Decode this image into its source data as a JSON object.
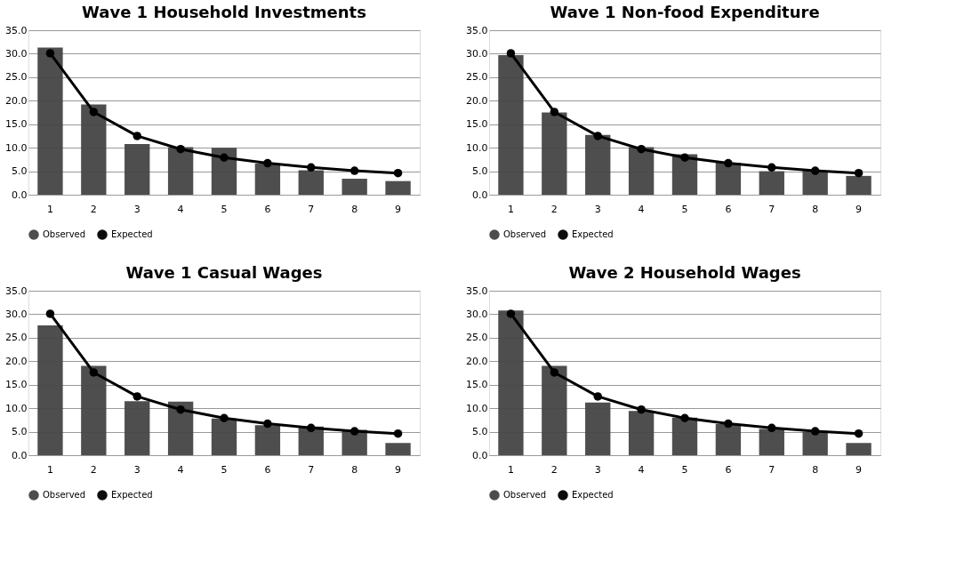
{
  "chart_data": [
    {
      "type": "bar",
      "title": "Wave 1 Household Investments",
      "categories": [
        "1",
        "2",
        "3",
        "4",
        "5",
        "6",
        "7",
        "8",
        "9"
      ],
      "ylim": [
        0,
        35
      ],
      "yticks": [
        {
          "value": 0,
          "label": "0.0"
        },
        {
          "value": 5,
          "label": "5.0"
        },
        {
          "value": 10,
          "label": "10.0"
        },
        {
          "value": 15,
          "label": "15.0"
        },
        {
          "value": 20,
          "label": "20.0"
        },
        {
          "value": 25,
          "label": "25.0"
        },
        {
          "value": 30,
          "label": "30.0"
        },
        {
          "value": 35,
          "label": "35.0"
        }
      ],
      "grid": "y",
      "legend": "bottom",
      "marker": "circle",
      "series": [
        {
          "name": "Observed",
          "color": "#444444",
          "values": [
            31.3,
            19.2,
            10.8,
            10.1,
            10.0,
            6.6,
            5.2,
            3.4,
            2.9
          ]
        },
        {
          "name": "Expected",
          "type": "line",
          "color": "#000000",
          "values": [
            30.1,
            17.6,
            12.5,
            9.7,
            7.9,
            6.7,
            5.8,
            5.1,
            4.6
          ]
        }
      ]
    },
    {
      "type": "bar",
      "title": "Wave 1 Non-food Expenditure",
      "categories": [
        "1",
        "2",
        "3",
        "4",
        "5",
        "6",
        "7",
        "8",
        "9"
      ],
      "ylim": [
        0,
        35
      ],
      "yticks": [
        {
          "value": 0,
          "label": "0.0"
        },
        {
          "value": 5,
          "label": "5.0"
        },
        {
          "value": 10,
          "label": "10.0"
        },
        {
          "value": 15,
          "label": "15.0"
        },
        {
          "value": 20,
          "label": "20.0"
        },
        {
          "value": 25,
          "label": "25.0"
        },
        {
          "value": 30,
          "label": "30.0"
        },
        {
          "value": 35,
          "label": "35.0"
        }
      ],
      "grid": "y",
      "legend": "bottom",
      "marker": "circle",
      "series": [
        {
          "name": "Observed",
          "color": "#444444",
          "values": [
            29.7,
            17.5,
            12.7,
            10.1,
            8.6,
            6.8,
            5.0,
            5.1,
            4.0
          ]
        },
        {
          "name": "Expected",
          "type": "line",
          "color": "#000000",
          "values": [
            30.1,
            17.6,
            12.5,
            9.7,
            7.9,
            6.7,
            5.8,
            5.1,
            4.6
          ]
        }
      ]
    },
    {
      "type": "bar",
      "title": "Wave 1 Casual Wages",
      "categories": [
        "1",
        "2",
        "3",
        "4",
        "5",
        "6",
        "7",
        "8",
        "9"
      ],
      "ylim": [
        0,
        35
      ],
      "yticks": [
        {
          "value": 0,
          "label": "0.0"
        },
        {
          "value": 5,
          "label": "5.0"
        },
        {
          "value": 10,
          "label": "10.0"
        },
        {
          "value": 15,
          "label": "15.0"
        },
        {
          "value": 20,
          "label": "20.0"
        },
        {
          "value": 25,
          "label": "25.0"
        },
        {
          "value": 30,
          "label": "30.0"
        },
        {
          "value": 35,
          "label": "35.0"
        }
      ],
      "grid": "y",
      "legend": "bottom",
      "marker": "circle",
      "series": [
        {
          "name": "Observed",
          "color": "#444444",
          "values": [
            27.6,
            19.0,
            11.5,
            11.4,
            7.8,
            6.4,
            6.1,
            5.4,
            2.6
          ]
        },
        {
          "name": "Expected",
          "type": "line",
          "color": "#000000",
          "values": [
            30.1,
            17.6,
            12.5,
            9.7,
            7.9,
            6.7,
            5.8,
            5.1,
            4.6
          ]
        }
      ]
    },
    {
      "type": "bar",
      "title": "Wave 2 Household Wages",
      "categories": [
        "1",
        "2",
        "3",
        "4",
        "5",
        "6",
        "7",
        "8",
        "9"
      ],
      "ylim": [
        0,
        35
      ],
      "yticks": [
        {
          "value": 0,
          "label": "0.0"
        },
        {
          "value": 5,
          "label": "5.0"
        },
        {
          "value": 10,
          "label": "10.0"
        },
        {
          "value": 15,
          "label": "15.0"
        },
        {
          "value": 20,
          "label": "20.0"
        },
        {
          "value": 25,
          "label": "25.0"
        },
        {
          "value": 30,
          "label": "30.0"
        },
        {
          "value": 35,
          "label": "35.0"
        }
      ],
      "grid": "y",
      "legend": "bottom",
      "marker": "circle",
      "series": [
        {
          "name": "Observed",
          "color": "#444444",
          "values": [
            30.8,
            19.0,
            11.2,
            9.4,
            8.0,
            6.6,
            5.6,
            5.0,
            2.6
          ]
        },
        {
          "name": "Expected",
          "type": "line",
          "color": "#000000",
          "values": [
            30.1,
            17.6,
            12.5,
            9.7,
            7.9,
            6.7,
            5.8,
            5.1,
            4.6
          ]
        }
      ]
    }
  ]
}
